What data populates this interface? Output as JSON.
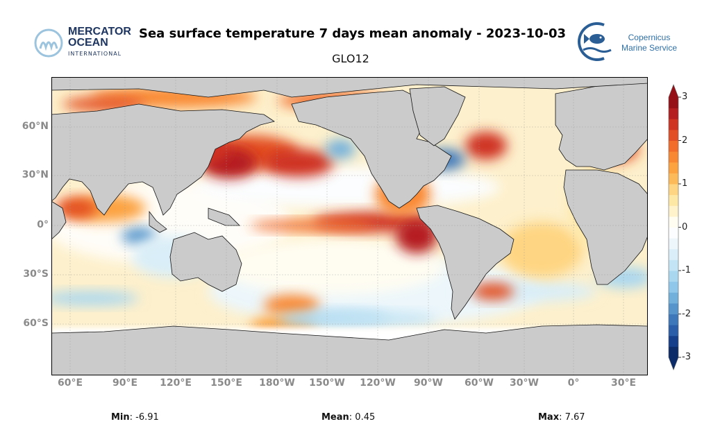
{
  "header": {
    "title": "Sea surface temperature 7 days mean anomaly - 2023-10-03",
    "subtitle": "GLO12",
    "left_logo": {
      "line1": "MERCATOR",
      "line2": "OCEAN",
      "line3": "INTERNATIONAL"
    },
    "right_logo": {
      "line1": "Copernicus",
      "line2": "Marine Service",
      "icon": "fish-icon"
    }
  },
  "map": {
    "projection": "equirectangular, centered near 180°",
    "land_color": "#cbcbcb",
    "lon_ticks": [
      "60°E",
      "90°E",
      "120°E",
      "150°E",
      "180°W",
      "150°W",
      "120°W",
      "90°W",
      "60°W",
      "30°W",
      "0°",
      "30°E"
    ],
    "lat_ticks": [
      "60°N",
      "30°N",
      "0°",
      "30°S",
      "60°S"
    ],
    "grid": true
  },
  "colorbar": {
    "range": [
      -3,
      3
    ],
    "extend": "both",
    "ticks": [
      "3",
      "2",
      "1",
      "0",
      "-1",
      "-2",
      "-3"
    ],
    "colors": [
      "#0b2c68",
      "#153f8a",
      "#2a5ea8",
      "#3d78bb",
      "#5595cb",
      "#72b0dc",
      "#8fc7ea",
      "#a9d7f0",
      "#c3e4f4",
      "#d9eef8",
      "#ecf6fb",
      "#fbfdfe",
      "#fffdf2",
      "#fff3cc",
      "#fee8a6",
      "#fed582",
      "#fdba58",
      "#fca23f",
      "#f98832",
      "#f26c2a",
      "#e34f24",
      "#cf3321",
      "#b51e20",
      "#961017"
    ]
  },
  "stats": {
    "min_label": "Min",
    "min_value": ": -6.91",
    "mean_label": "Mean",
    "mean_value": ": 0.45",
    "max_label": "Max",
    "max_value": ": 7.67"
  }
}
